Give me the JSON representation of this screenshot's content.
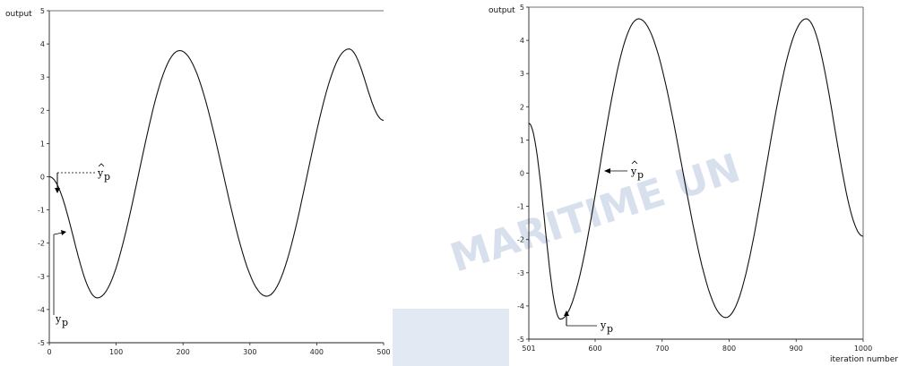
{
  "chart_data": [
    {
      "type": "line",
      "ylabel": "output",
      "xlabel": "",
      "xlim": [
        0,
        500
      ],
      "ylim": [
        -5,
        5
      ],
      "x_ticks": [
        0,
        100,
        200,
        300,
        400,
        500
      ],
      "y_ticks": [
        -5,
        -4,
        -3,
        -2,
        -1,
        0,
        1,
        2,
        3,
        4,
        5
      ],
      "series": [
        {
          "values": [
            [
              0,
              0
            ],
            [
              72,
              -3.65
            ],
            [
              195,
              3.8
            ],
            [
              325,
              -3.6
            ],
            [
              448,
              3.85
            ],
            [
              500,
              1.7
            ]
          ]
        }
      ],
      "annotations": {
        "y_p_hat": "y",
        "y_p_hat_sub": "p",
        "y_p": "y",
        "y_p_sub": "p"
      }
    },
    {
      "type": "line",
      "ylabel": "output",
      "xlabel": "iteration number",
      "xlim": [
        501,
        1000
      ],
      "ylim": [
        -5,
        5
      ],
      "x_ticks": [
        501,
        600,
        700,
        800,
        900,
        1000
      ],
      "y_ticks": [
        -5,
        -4,
        -3,
        -2,
        -1,
        0,
        1,
        2,
        3,
        4,
        5
      ],
      "series": [
        {
          "values": [
            [
              501,
              1.5
            ],
            [
              548,
              -4.4
            ],
            [
              665,
              4.65
            ],
            [
              795,
              -4.35
            ],
            [
              915,
              4.65
            ],
            [
              1000,
              -1.9
            ]
          ]
        }
      ],
      "annotations": {
        "y_p_hat": "y",
        "y_p_hat_sub": "p",
        "y_p": "y",
        "y_p_sub": "p"
      }
    }
  ],
  "watermark": {
    "text": "MARITIME UN",
    "color": "#8ea8c9"
  }
}
